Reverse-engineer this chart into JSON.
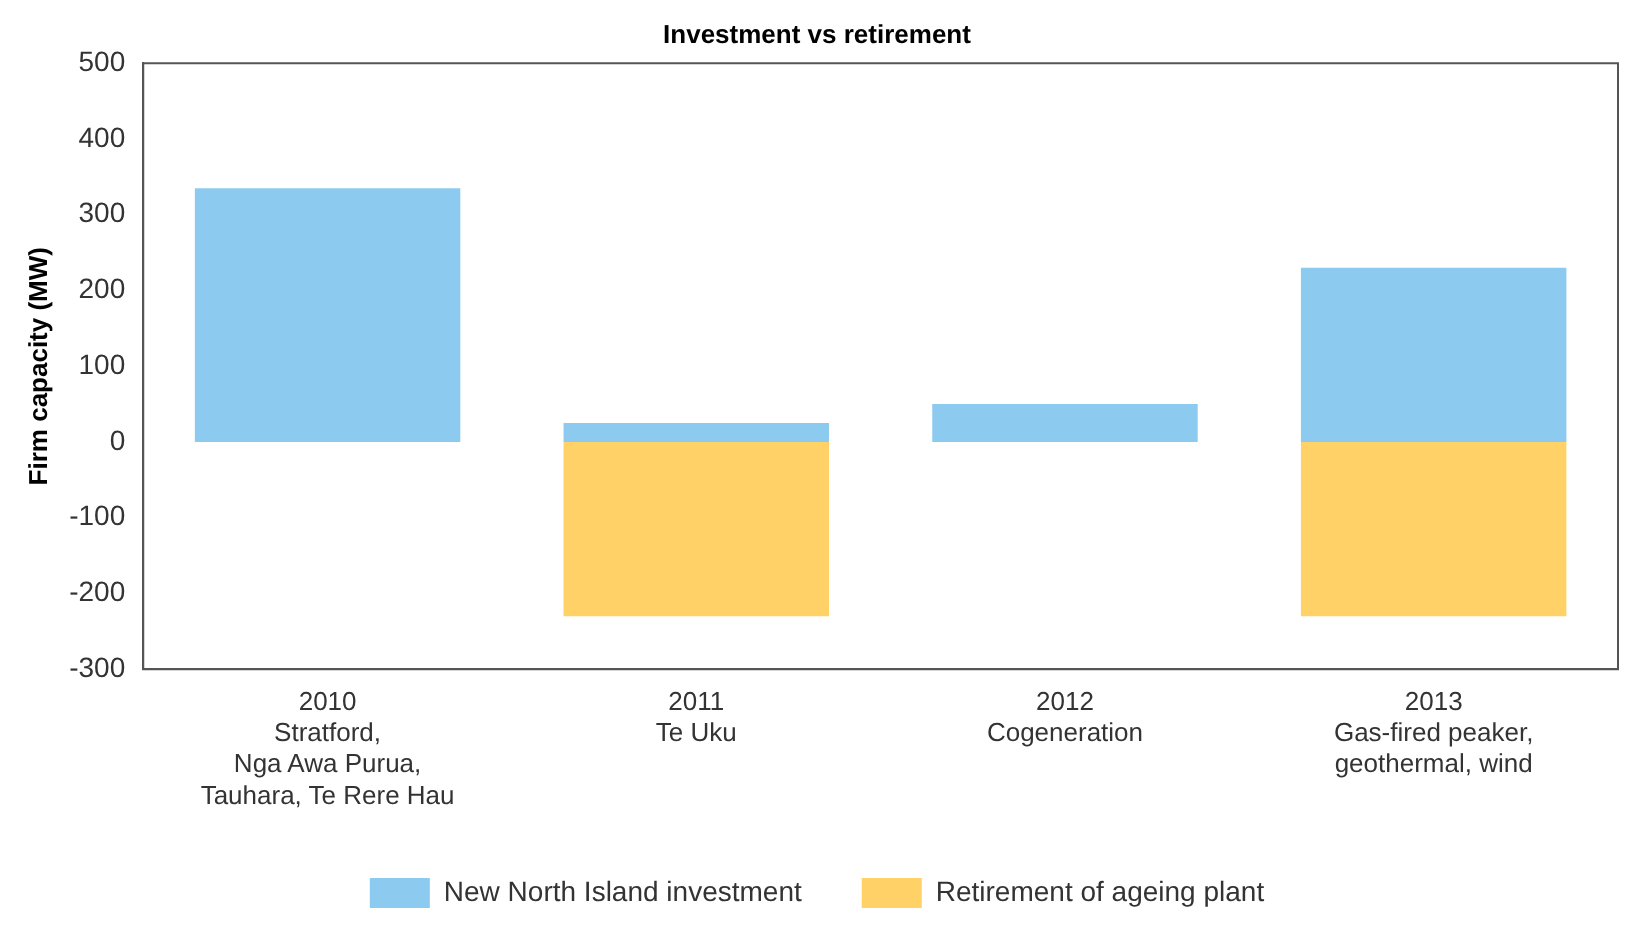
{
  "chart_data": {
    "type": "bar",
    "title": "Investment vs retirement",
    "ylabel": "Firm capacity (MW)",
    "categories": [
      "2010\nStratford,\nNga Awa Purua,\nTauhara, Te Rere Hau",
      "2011\nTe Uku",
      "2012\nCogeneration",
      "2013\nGas-fired peaker,\ngeothermal, wind"
    ],
    "series": [
      {
        "name": "New North Island investment",
        "color": "#8ccbef",
        "values": [
          335,
          25,
          50,
          230
        ]
      },
      {
        "name": "Retirement of ageing plant",
        "color": "#ffd166",
        "values": [
          null,
          -230,
          null,
          -230
        ]
      }
    ],
    "stacked": true,
    "ylim": [
      -300,
      500
    ],
    "yticks": [
      -300,
      -200,
      -100,
      0,
      100,
      200,
      300,
      400,
      500
    ],
    "grid": false,
    "legend": "bottom"
  }
}
